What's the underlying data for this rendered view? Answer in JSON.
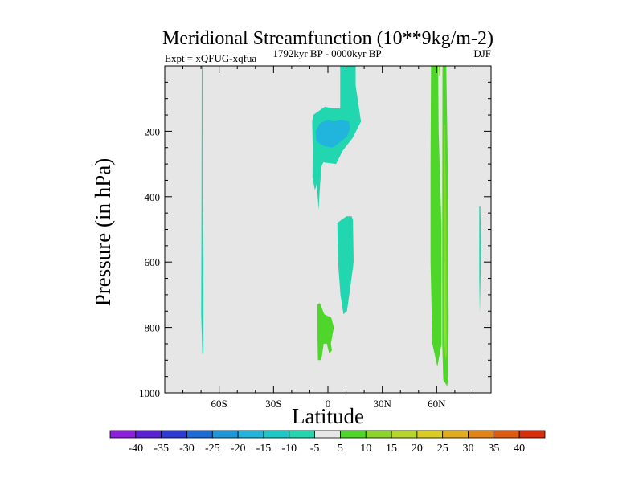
{
  "chart_data": {
    "type": "contour",
    "title": "Meridional Streamfunction (10**9kg/m-2)",
    "left_label": "Expt = xQFUG-xqfua",
    "center_label": "1792kyr BP - 0000kyr BP",
    "right_label": "DJF",
    "xlabel": "Latitude",
    "ylabel": "Pressure (in hPa)",
    "xlim": [
      -90,
      90
    ],
    "ylim": [
      1000,
      0
    ],
    "y_reversed": true,
    "x_ticks": [
      {
        "value": -60,
        "label": "60S"
      },
      {
        "value": -30,
        "label": "30S"
      },
      {
        "value": 0,
        "label": "0"
      },
      {
        "value": 30,
        "label": "30N"
      },
      {
        "value": 60,
        "label": "60N"
      }
    ],
    "y_ticks": [
      {
        "value": 200,
        "label": "200"
      },
      {
        "value": 400,
        "label": "400"
      },
      {
        "value": 600,
        "label": "600"
      },
      {
        "value": 800,
        "label": "800"
      },
      {
        "value": 1000,
        "label": "1000"
      }
    ],
    "background_color": "#e6e6e6",
    "colorbar": {
      "labels": [
        "-40",
        "-35",
        "-30",
        "-25",
        "-20",
        "-15",
        "-10",
        "-5",
        "5",
        "10",
        "15",
        "20",
        "25",
        "30",
        "35",
        "40"
      ],
      "colors": [
        "#8c1fdc",
        "#5a20d6",
        "#2d3bd4",
        "#1d6ad6",
        "#1f96d8",
        "#21b4dc",
        "#1ec8c8",
        "#22d6b0",
        "#e6e6e6",
        "#4fd62a",
        "#8ad62a",
        "#b8d62a",
        "#dccc22",
        "#e4ac1a",
        "#e28416",
        "#e05a12",
        "#d82c0a"
      ]
    },
    "regions": [
      {
        "name": "band-70S",
        "color": "#22d6b0",
        "points": [
          [
            -69.6,
            0
          ],
          [
            -69.1,
            0
          ],
          [
            -69.1,
            380
          ],
          [
            -68.7,
            600
          ],
          [
            -68.7,
            880
          ],
          [
            -69.3,
            880
          ],
          [
            -69.9,
            760
          ],
          [
            -69.8,
            520
          ]
        ]
      },
      {
        "name": "upper-tropics-pos5",
        "color": "#22d6b0",
        "points": [
          [
            -8.1,
            150
          ],
          [
            -1.7,
            125
          ],
          [
            2.8,
            130
          ],
          [
            6.8,
            130
          ],
          [
            6.8,
            0
          ],
          [
            15.3,
            0
          ],
          [
            15.3,
            60
          ],
          [
            18.2,
            170
          ],
          [
            13.7,
            220
          ],
          [
            8.1,
            260
          ],
          [
            4.5,
            300
          ],
          [
            -2.6,
            295
          ],
          [
            -3.7,
            310
          ],
          [
            -5.2,
            440
          ],
          [
            -6.1,
            360
          ],
          [
            -7.2,
            380
          ],
          [
            -8.5,
            340
          ],
          [
            -8.4,
            250
          ],
          [
            -8.7,
            170
          ]
        ]
      },
      {
        "name": "upper-tropics-neg10",
        "color": "#21b4dc",
        "points": [
          [
            -6.8,
            200
          ],
          [
            -4.3,
            175
          ],
          [
            0.1,
            165
          ],
          [
            3.4,
            170
          ],
          [
            7.2,
            165
          ],
          [
            11.7,
            170
          ],
          [
            12.2,
            190
          ],
          [
            10.7,
            215
          ],
          [
            6.3,
            235
          ],
          [
            2.7,
            250
          ],
          [
            -2.4,
            245
          ],
          [
            -6.3,
            230
          ]
        ]
      },
      {
        "name": "midlevel-tropics-pos5",
        "color": "#22d6b0",
        "points": [
          [
            5.2,
            480
          ],
          [
            10.2,
            460
          ],
          [
            13.1,
            460
          ],
          [
            13.8,
            470
          ],
          [
            14.2,
            600
          ],
          [
            12.3,
            680
          ],
          [
            10.5,
            750
          ],
          [
            8.6,
            760
          ],
          [
            6.9,
            700
          ],
          [
            5.6,
            600
          ]
        ]
      },
      {
        "name": "lower-tropics-green",
        "color": "#4fd62a",
        "points": [
          [
            -5.8,
            730
          ],
          [
            -4.5,
            725
          ],
          [
            -2.0,
            760
          ],
          [
            1.8,
            770
          ],
          [
            3.3,
            800
          ],
          [
            1.6,
            850
          ],
          [
            2.2,
            870
          ],
          [
            0.7,
            880
          ],
          [
            -0.6,
            850
          ],
          [
            -2.3,
            850
          ],
          [
            -3.7,
            900
          ],
          [
            -5.5,
            900
          ],
          [
            -5.7,
            840
          ]
        ]
      },
      {
        "name": "band-55N",
        "color": "#4fd62a",
        "points": [
          [
            56.9,
            0
          ],
          [
            60.8,
            0
          ],
          [
            61.1,
            200
          ],
          [
            62.7,
            500
          ],
          [
            62.7,
            850
          ],
          [
            60.4,
            920
          ],
          [
            57.6,
            850
          ],
          [
            56.6,
            600
          ],
          [
            56.6,
            300
          ]
        ]
      },
      {
        "name": "band-66N",
        "color": "#4fd62a",
        "points": [
          [
            63.2,
            0
          ],
          [
            65.3,
            0
          ],
          [
            66.1,
            300
          ],
          [
            66.4,
            600
          ],
          [
            66.6,
            780
          ],
          [
            66.4,
            950
          ],
          [
            65.8,
            980
          ],
          [
            63.6,
            960
          ],
          [
            63.1,
            850
          ],
          [
            63.1,
            400
          ]
        ]
      },
      {
        "name": "band-66N-core",
        "color": "#8ad62a",
        "points": [
          [
            63.9,
            180
          ],
          [
            64.6,
            180
          ],
          [
            65.3,
            500
          ],
          [
            65.6,
            880
          ],
          [
            64.7,
            900
          ],
          [
            64.3,
            700
          ],
          [
            63.9,
            400
          ]
        ]
      },
      {
        "name": "band-66N-max",
        "color": "#b8d62a",
        "points": [
          [
            64.2,
            600
          ],
          [
            64.6,
            600
          ],
          [
            64.9,
            820
          ],
          [
            64.5,
            880
          ],
          [
            64.2,
            800
          ]
        ]
      },
      {
        "name": "band-61N-small",
        "color": "#8ad62a",
        "points": [
          [
            61.2,
            0
          ],
          [
            62.1,
            0
          ],
          [
            62.0,
            30
          ],
          [
            61.4,
            30
          ]
        ]
      },
      {
        "name": "band-84N",
        "color": "#22d6b0",
        "points": [
          [
            83.5,
            430
          ],
          [
            84.1,
            430
          ],
          [
            84.5,
            560
          ],
          [
            83.8,
            760
          ],
          [
            83.5,
            650
          ]
        ]
      }
    ]
  }
}
